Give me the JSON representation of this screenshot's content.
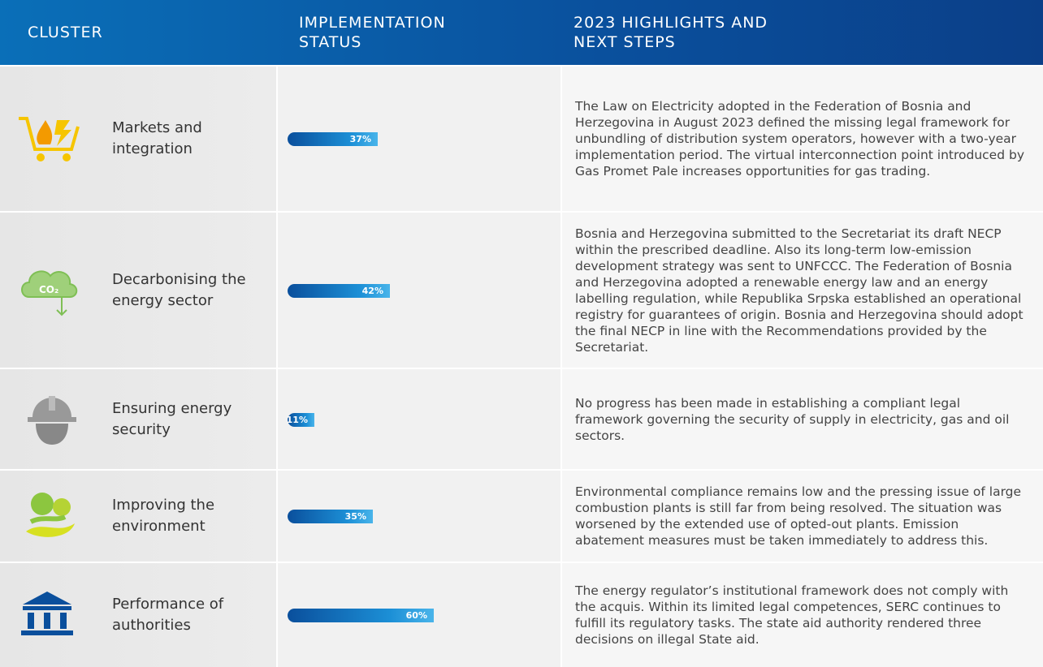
{
  "header": {
    "cluster": "CLUSTER",
    "status": "IMPLEMENTATION STATUS",
    "highlights": "2023 HIGHLIGHTS AND NEXT STEPS"
  },
  "table": {
    "rows": [
      {
        "cluster": "Markets and integration",
        "status": 37,
        "status_label": "37%",
        "highlights": "The Law on Electricity adopted in the Federation of Bosnia and Herzegovina in August 2023 defined the missing legal framework for unbundling of distribution system operators, however with a two-year implementation period. The virtual interconnection point introduced by Gas Promet Pale increases opportunities for gas trading."
      },
      {
        "cluster": "Decarbonising the energy sector",
        "status": 42,
        "status_label": "42%",
        "highlights": "Bosnia and Herzegovina submitted to the Secretariat its draft NECP within the prescribed deadline. Also its long-term low-emission development strategy was sent to UNFCCC. The Federation of Bosnia and Herzegovina adopted a renewable energy law and an energy labelling regulation, while Republika Srpska established an operational registry for guarantees of origin. Bosnia and Herzegovina should adopt the final NECP in line with the Recommendations provided by the Secretariat."
      },
      {
        "cluster": "Ensuring energy security",
        "status": 11,
        "status_label": "11%",
        "highlights": "No progress has been made in establishing a compliant legal framework governing the security of supply in electricity, gas and oil sectors."
      },
      {
        "cluster": "Improving the environment",
        "status": 35,
        "status_label": "35%",
        "highlights": "Environmental compliance remains low and the pressing issue of large combustion plants is still far from being resolved. The situation was worsened by the extended use of opted-out plants. Emission abatement measures must be taken immediately to address this."
      },
      {
        "cluster": "Performance of authorities",
        "status": 60,
        "status_label": "60%",
        "highlights": "The energy regulator’s institutional framework does not comply with the acquis. Within its limited legal competences, SERC continues to fulfill its regulatory tasks. The state aid authority rendered three decisions on illegal State aid."
      }
    ]
  }
}
